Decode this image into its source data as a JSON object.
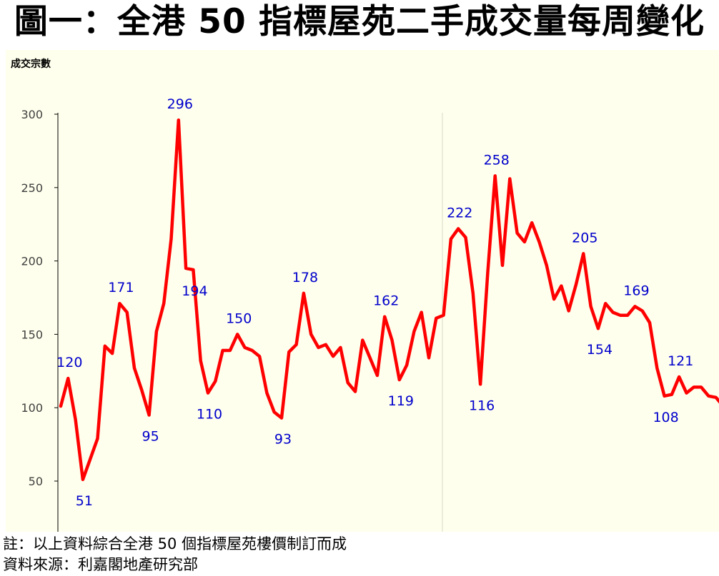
{
  "chart_data": {
    "type": "line",
    "title": "圖一：全港 50 指標屋苑二手成交量每周變化",
    "ylabel": "成交宗數",
    "xlabel": "",
    "ylim": [
      30,
      300
    ],
    "yticks": [
      50,
      100,
      150,
      200,
      250,
      300
    ],
    "grid": false,
    "legend": "none",
    "series": [
      {
        "color": "#ff0000",
        "values": [
          101,
          120,
          92,
          51,
          65,
          79,
          142,
          137,
          171,
          165,
          127,
          112,
          95,
          152,
          171,
          215,
          296,
          195,
          194,
          132,
          110,
          118,
          139,
          139,
          150,
          141,
          139,
          135,
          110,
          97,
          93,
          138,
          143,
          178,
          150,
          141,
          143,
          135,
          141,
          117,
          111,
          146,
          134,
          122,
          162,
          146,
          119,
          129,
          152,
          165,
          134,
          161,
          163,
          215,
          222,
          216,
          178,
          116,
          192,
          258,
          197,
          256,
          219,
          213,
          226,
          213,
          197,
          174,
          183,
          166,
          184,
          205,
          169,
          154,
          171,
          165,
          163,
          163,
          169,
          166,
          158,
          127,
          108,
          109,
          121,
          110,
          114,
          114,
          108,
          107,
          101
        ]
      }
    ],
    "data_labels": [
      {
        "index": 1,
        "text": "120"
      },
      {
        "index": 3,
        "text": "51"
      },
      {
        "index": 8,
        "text": "171"
      },
      {
        "index": 12,
        "text": "95"
      },
      {
        "index": 16,
        "text": "296"
      },
      {
        "index": 18,
        "text": "194"
      },
      {
        "index": 20,
        "text": "110"
      },
      {
        "index": 24,
        "text": "150"
      },
      {
        "index": 30,
        "text": "93"
      },
      {
        "index": 33,
        "text": "178"
      },
      {
        "index": 44,
        "text": "162"
      },
      {
        "index": 46,
        "text": "119"
      },
      {
        "index": 54,
        "text": "222"
      },
      {
        "index": 57,
        "text": "116"
      },
      {
        "index": 59,
        "text": "258"
      },
      {
        "index": 71,
        "text": "205"
      },
      {
        "index": 73,
        "text": "154"
      },
      {
        "index": 78,
        "text": "169"
      },
      {
        "index": 82,
        "text": "108"
      },
      {
        "index": 84,
        "text": "121"
      }
    ],
    "label_color": "#0000cc"
  },
  "notes": {
    "note1": "註：以上資料綜合全港 50 個指標屋苑樓價制訂而成",
    "note2": "資料來源：利嘉閣地產研究部"
  }
}
